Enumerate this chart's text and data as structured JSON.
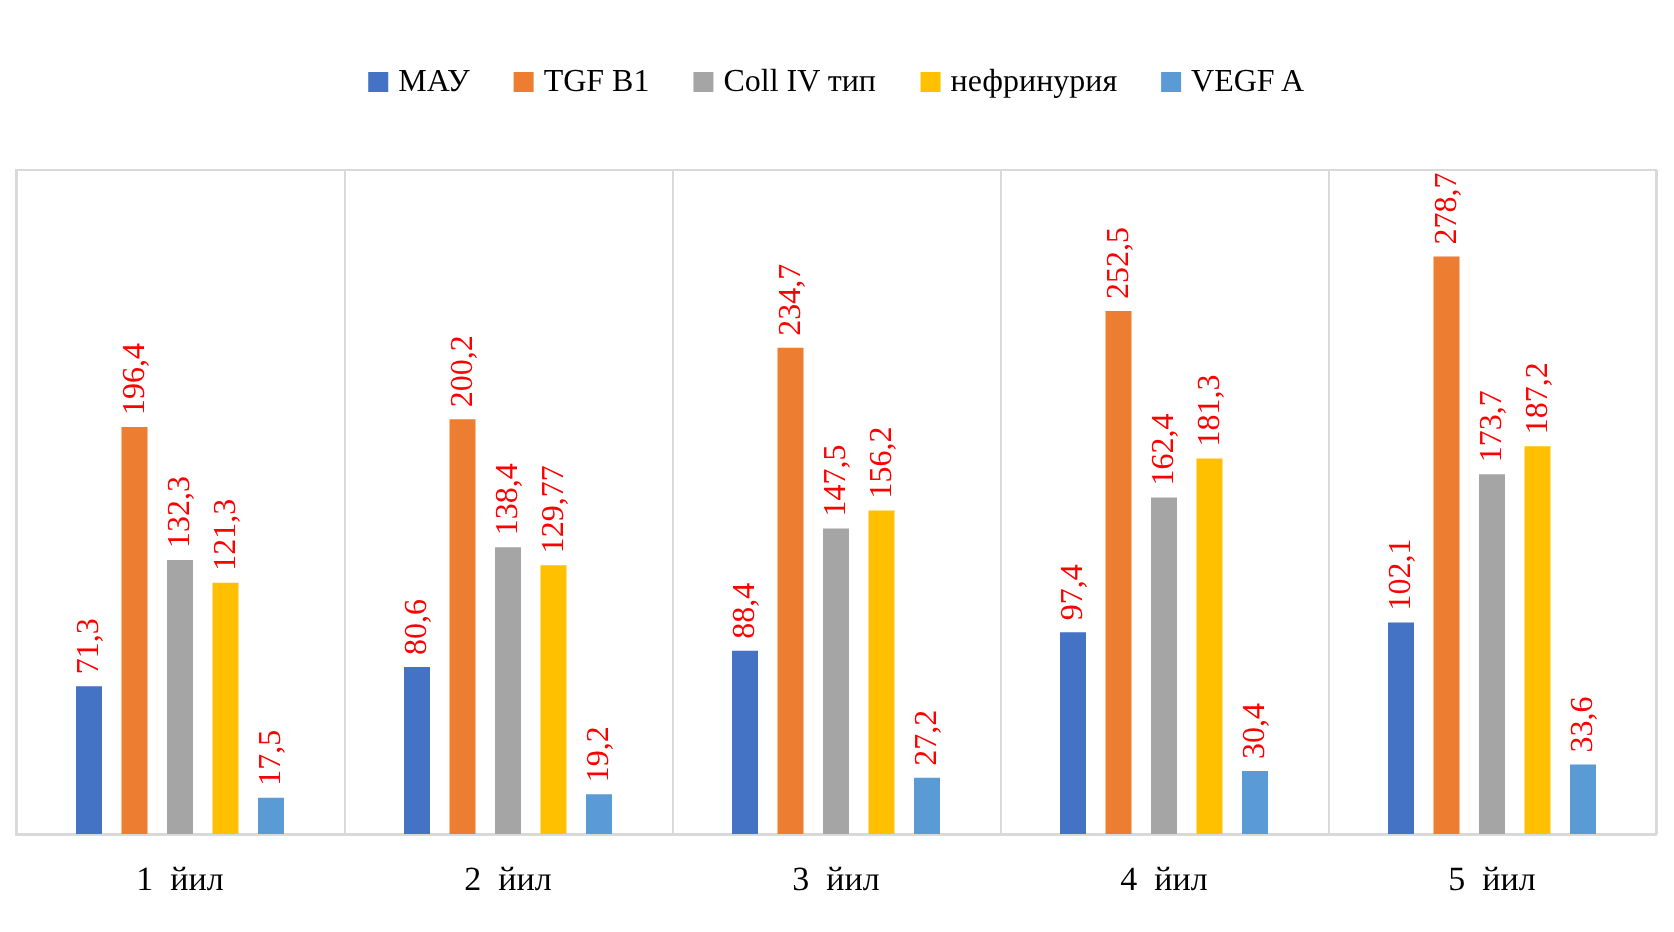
{
  "chart_data": {
    "type": "bar",
    "categories": [
      "1  йил",
      "2  йил",
      "3  йил",
      "4  йил",
      "5  йил"
    ],
    "series": [
      {
        "name": "МАУ",
        "color": "#4472c4",
        "values": [
          71.3,
          80.6,
          88.4,
          97.4,
          102.1
        ],
        "value_labels": [
          "71,3",
          "80,6",
          "88,4",
          "97,4",
          "102,1"
        ]
      },
      {
        "name": "TGF B1",
        "color": "#ed7d31",
        "values": [
          196.4,
          200.2,
          234.7,
          252.5,
          278.7
        ],
        "value_labels": [
          "196,4",
          "200,2",
          "234,7",
          "252,5",
          "278,7"
        ]
      },
      {
        "name": "Coll IV тип",
        "color": "#a5a5a5",
        "values": [
          132.3,
          138.4,
          147.5,
          162.4,
          173.7
        ],
        "value_labels": [
          "132,3",
          "138,4",
          "147,5",
          "162,4",
          "173,7"
        ]
      },
      {
        "name": "нефринурия",
        "color": "#ffc000",
        "values": [
          121.3,
          129.77,
          156.2,
          181.3,
          187.2
        ],
        "value_labels": [
          "121,3",
          "129,77",
          "156,2",
          "181,3",
          "187,2"
        ]
      },
      {
        "name": "VEGF A",
        "color": "#5b9bd5",
        "values": [
          17.5,
          19.2,
          27.2,
          30.4,
          33.6
        ],
        "value_labels": [
          "17,5",
          "19,2",
          "27,2",
          "30,4",
          "33,6"
        ]
      }
    ],
    "grid": "x",
    "legend": "top"
  }
}
